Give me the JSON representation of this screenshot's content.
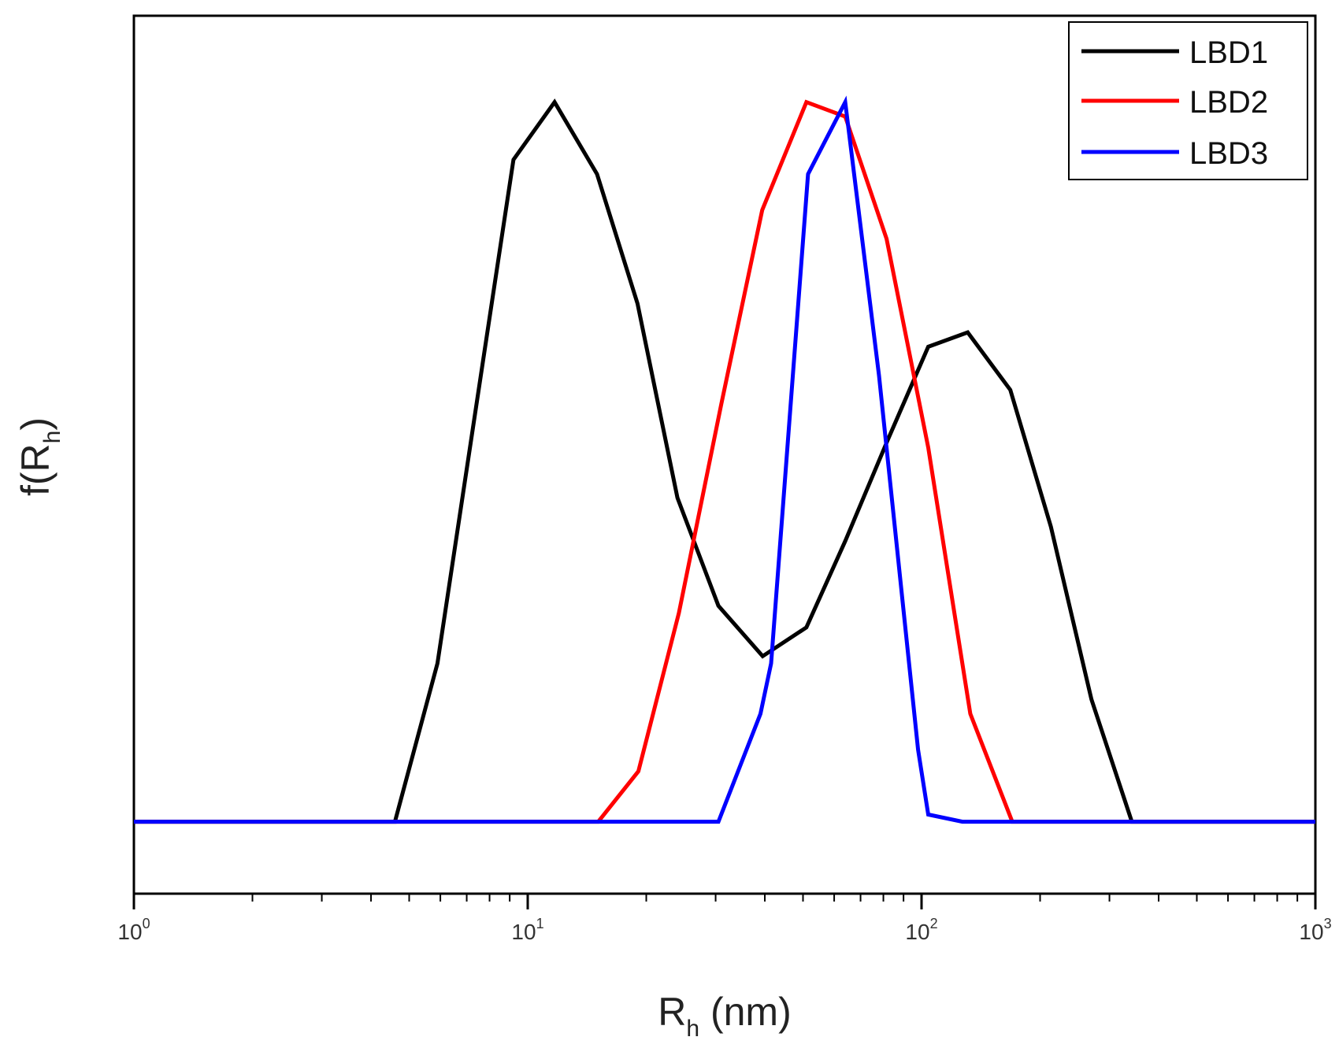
{
  "chart_data": {
    "type": "line",
    "title": "",
    "xscale": "log",
    "xlim": [
      1,
      1000
    ],
    "ylim": [
      -0.1,
      1.12
    ],
    "grid": false,
    "legend_position": "top-right",
    "xlabel": {
      "base": "R",
      "sub": "h",
      "rest": " (nm)"
    },
    "ylabel": {
      "base": "f(R",
      "sub": "h",
      "rest": ")"
    },
    "x_ticks": [
      {
        "value": 1,
        "base": "10",
        "exp": "0"
      },
      {
        "value": 10,
        "base": "10",
        "exp": "1"
      },
      {
        "value": 100,
        "base": "10",
        "exp": "2"
      },
      {
        "value": 1000,
        "base": "10",
        "exp": "3"
      }
    ],
    "series": [
      {
        "name": "LBD1",
        "color": "#000000",
        "x": [
          1,
          4.6,
          5.9,
          7.7,
          9.2,
          11.7,
          15,
          19,
          24,
          30.5,
          39.5,
          51,
          64,
          82,
          104,
          131,
          168,
          213,
          270,
          342,
          1000
        ],
        "y": [
          0,
          0,
          0.22,
          0.64,
          0.92,
          1.0,
          0.9,
          0.72,
          0.45,
          0.3,
          0.23,
          0.27,
          0.39,
          0.53,
          0.66,
          0.68,
          0.6,
          0.41,
          0.17,
          0,
          0
        ]
      },
      {
        "name": "LBD2",
        "color": "#ff0000",
        "x": [
          1,
          15.1,
          19.1,
          24.2,
          31,
          39.4,
          51,
          64,
          81.5,
          104,
          133,
          170,
          1000
        ],
        "y": [
          0,
          0,
          0.07,
          0.29,
          0.58,
          0.85,
          1.0,
          0.98,
          0.81,
          0.52,
          0.15,
          0,
          0
        ]
      },
      {
        "name": "LBD3",
        "color": "#0000ff",
        "x": [
          1,
          30.5,
          39,
          41.5,
          51.5,
          64,
          78,
          98,
          104,
          127,
          1000
        ],
        "y": [
          0,
          0,
          0.15,
          0.22,
          0.9,
          1.0,
          0.62,
          0.1,
          0.01,
          0,
          0
        ]
      }
    ]
  }
}
